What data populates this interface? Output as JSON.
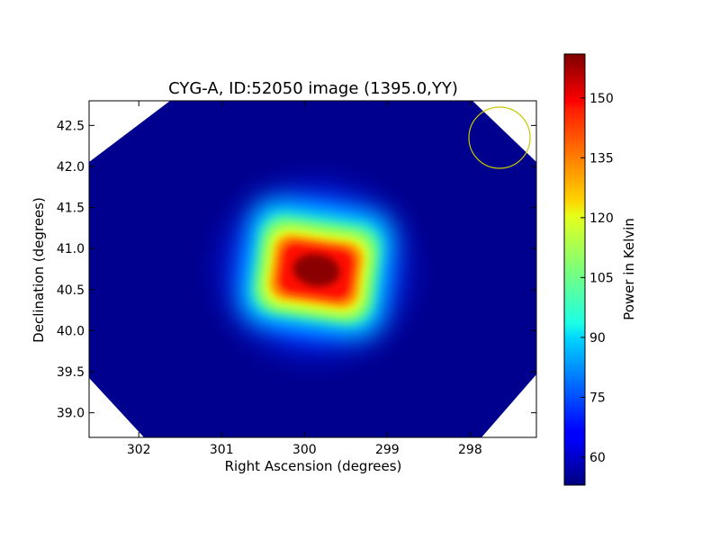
{
  "chart_data": {
    "type": "heatmap",
    "title": "CYG-A, ID:52050 image (1395.0,YY)",
    "xlabel": "Right Ascension (degrees)",
    "ylabel": "Declination (degrees)",
    "xlim": [
      302.6,
      297.2
    ],
    "ylim": [
      38.7,
      42.8
    ],
    "x_ticks": [
      302,
      301,
      300,
      299,
      298
    ],
    "y_ticks": [
      39.0,
      39.5,
      40.0,
      40.5,
      41.0,
      41.5,
      42.0,
      42.5
    ],
    "x_tick_labels": [
      "302",
      "301",
      "300",
      "299",
      "298"
    ],
    "y_tick_labels": [
      "39.0",
      "39.5",
      "40.0",
      "40.5",
      "41.0",
      "41.5",
      "42.0",
      "42.5"
    ],
    "peak": {
      "ra": 299.75,
      "dec": 40.72,
      "value": 160
    },
    "background_value": 55,
    "colorbar": {
      "label": "Power in Kelvin",
      "range": [
        53,
        161
      ],
      "ticks": [
        60,
        75,
        90,
        105,
        120,
        135,
        150
      ],
      "tick_labels": [
        "60",
        "75",
        "90",
        "105",
        "120",
        "135",
        "150"
      ],
      "colormap": "jet"
    },
    "marker": {
      "shape": "circle",
      "ra": 297.6,
      "dec": 42.33,
      "radius_deg": 0.37,
      "color": "#c8c800"
    },
    "grid": false
  },
  "colors": {
    "jet_low": "#00007f",
    "jet_high": "#7f0000",
    "marker": "#c8c800",
    "masked": "#ffffff"
  }
}
